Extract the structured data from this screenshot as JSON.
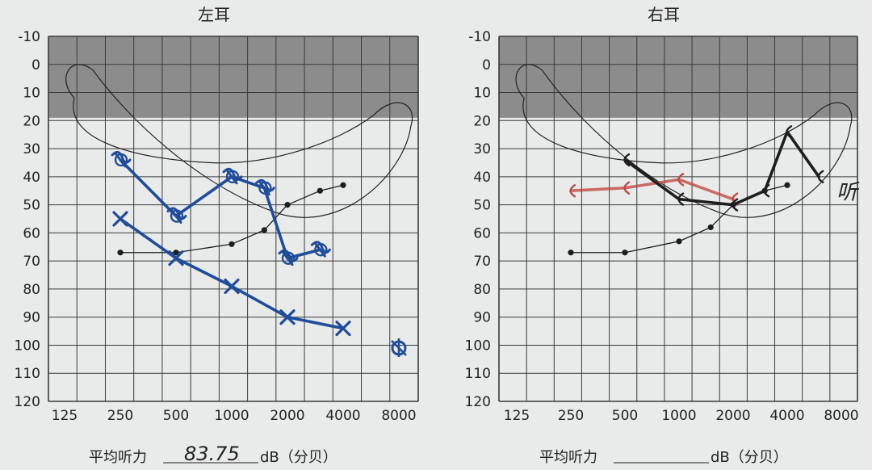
{
  "chart_data": [
    {
      "type": "line",
      "title": "左耳",
      "x_ticks": [
        "125",
        "250",
        "500",
        "1000",
        "2000",
        "4000",
        "8000"
      ],
      "y_ticks": [
        -10,
        0,
        10,
        20,
        30,
        40,
        50,
        60,
        70,
        80,
        90,
        100,
        110,
        120
      ],
      "ylim": [
        -10,
        120
      ],
      "y_inverted": true,
      "shaded_band_db": [
        -10,
        19
      ],
      "grid": true,
      "footer_label": "平均听力",
      "footer_value": "83.75",
      "footer_unit": "dB（分贝）",
      "series": [
        {
          "style": "black-pencil-dot",
          "color": "#1e1e1e",
          "points": [
            [
              250,
              67
            ],
            [
              500,
              67
            ],
            [
              1000,
              64
            ],
            [
              1500,
              59
            ],
            [
              2000,
              50
            ],
            [
              3000,
              45
            ],
            [
              4000,
              43
            ]
          ]
        },
        {
          "style": "blue-cross",
          "color": "#1f4d9b",
          "points": [
            [
              250,
              55
            ],
            [
              500,
              69
            ],
            [
              1000,
              79
            ],
            [
              2000,
              90
            ],
            [
              4000,
              94
            ]
          ]
        },
        {
          "style": "blue-sigma",
          "color": "#1f4d9b",
          "points": [
            [
              250,
              34
            ],
            [
              500,
              54
            ],
            [
              1000,
              40
            ],
            [
              1500,
              44
            ],
            [
              2000,
              69
            ],
            [
              3000,
              66
            ]
          ]
        }
      ],
      "extra_marks": [
        {
          "style": "blue-circle-cross",
          "color": "#1f4d9b",
          "x": 8000,
          "y": 101
        }
      ]
    },
    {
      "type": "line",
      "title": "右耳",
      "x_ticks": [
        "125",
        "250",
        "500",
        "1000",
        "2000",
        "4000",
        "8000"
      ],
      "y_ticks": [
        -10,
        0,
        10,
        20,
        30,
        40,
        50,
        60,
        70,
        80,
        90,
        100,
        110,
        120
      ],
      "ylim": [
        -10,
        120
      ],
      "y_inverted": true,
      "shaded_band_db": [
        -10,
        19
      ],
      "grid": true,
      "footer_label": "平均听力",
      "footer_value": "",
      "footer_unit": "dB（分贝）",
      "series": [
        {
          "style": "black-pencil-dot",
          "color": "#1e1e1e",
          "points": [
            [
              250,
              67
            ],
            [
              500,
              67
            ],
            [
              1000,
              63
            ],
            [
              1500,
              58
            ],
            [
              2000,
              50
            ],
            [
              3000,
              45
            ],
            [
              4000,
              43
            ]
          ]
        },
        {
          "style": "red-bracket",
          "color": "#c04a42",
          "points": [
            [
              250,
              45
            ],
            [
              500,
              44
            ],
            [
              1000,
              41
            ],
            [
              2000,
              48
            ]
          ]
        },
        {
          "style": "black-bracket",
          "color": "#1e1e1e",
          "points": [
            [
              500,
              34
            ],
            [
              1000,
              48
            ],
            [
              2000,
              50
            ],
            [
              3000,
              45
            ],
            [
              4000,
              24
            ],
            [
              6000,
              40
            ]
          ]
        }
      ],
      "annotation": "听"
    }
  ]
}
